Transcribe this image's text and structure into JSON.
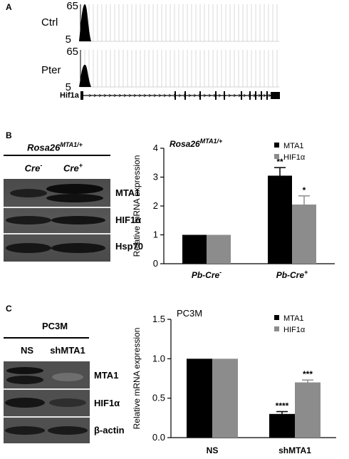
{
  "panel_a": {
    "letter": "A",
    "tracks": [
      {
        "label": "Ctrl",
        "ymax": "65",
        "ymin": "5",
        "peak_height": 1.0
      },
      {
        "label": "Pter",
        "ymax": "65",
        "ymin": "5",
        "peak_height": 0.6
      }
    ],
    "gene_label": "Hif1a"
  },
  "panel_b": {
    "letter": "B",
    "blot": {
      "title_main": "Rosa26",
      "title_sup": "MTA1/+",
      "lanes": [
        {
          "main": "Cre",
          "sup": "-"
        },
        {
          "main": "Cre",
          "sup": "+"
        }
      ],
      "rows": [
        "MTA1",
        "HIF1α",
        "Hsp70"
      ]
    }
  },
  "panel_c": {
    "letter": "C",
    "blot": {
      "title": "PC3M",
      "lanes": [
        "NS",
        "shMTA1"
      ],
      "rows": [
        "MTA1",
        "HIF1α",
        "β-actin"
      ]
    }
  },
  "chart_data": [
    {
      "type": "bar",
      "title_main": "Rosa26",
      "title_sup": "MTA1/+",
      "ylabel": "Relative mRNA expression",
      "ylim": [
        0,
        4
      ],
      "yticks": [
        "0",
        "1",
        "2",
        "3",
        "4"
      ],
      "categories": [
        {
          "main": "Pb-Cre",
          "sup": "-"
        },
        {
          "main": "Pb-Cre",
          "sup": "+"
        }
      ],
      "series": [
        {
          "name": "MTA1",
          "color": "#000000",
          "values": [
            1.0,
            3.05
          ],
          "errors": [
            0,
            0.28
          ],
          "stars": [
            "",
            "**"
          ]
        },
        {
          "name": "HIF1α",
          "color": "#8c8c8c",
          "values": [
            1.0,
            2.05
          ],
          "errors": [
            0,
            0.3
          ],
          "stars": [
            "",
            "*"
          ]
        }
      ],
      "legend_position": "top-right"
    },
    {
      "type": "bar",
      "title": "PC3M",
      "ylabel": "Relative mRNA expression",
      "ylim": [
        0,
        1.5
      ],
      "yticks": [
        "0.0",
        "0.5",
        "1.0",
        "1.5"
      ],
      "categories": [
        "NS",
        "shMTA1"
      ],
      "series": [
        {
          "name": "MTA1",
          "color": "#000000",
          "values": [
            1.0,
            0.3
          ],
          "errors": [
            0,
            0.03
          ],
          "stars": [
            "",
            "****"
          ]
        },
        {
          "name": "HIF1α",
          "color": "#8c8c8c",
          "values": [
            1.0,
            0.7
          ],
          "errors": [
            0,
            0.03
          ],
          "stars": [
            "",
            "***"
          ]
        }
      ],
      "legend_position": "top-right"
    }
  ]
}
